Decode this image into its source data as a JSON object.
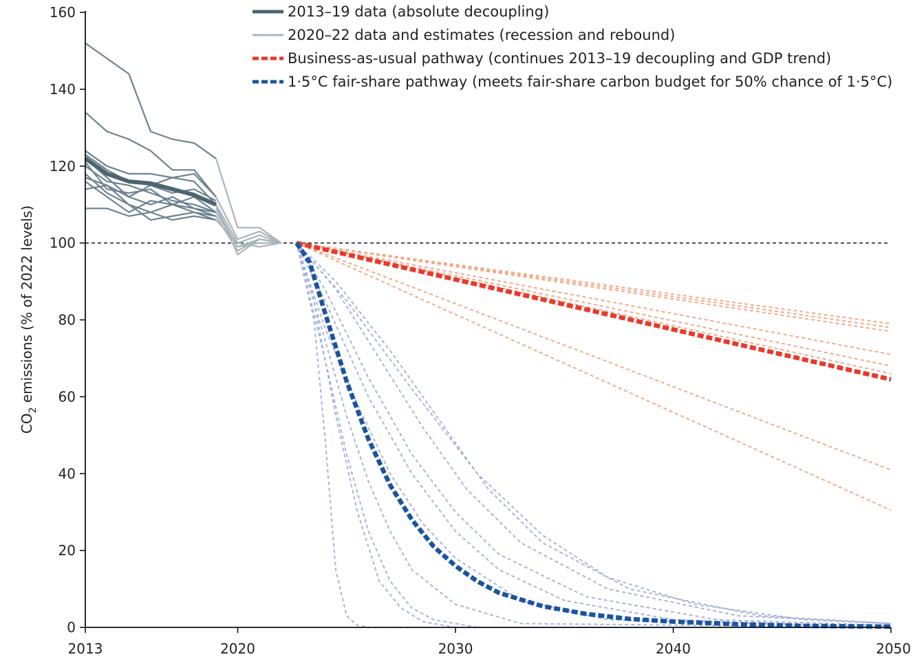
{
  "chart_data": {
    "type": "line",
    "ylabel": "CO2 emissions (% of 2022 levels)",
    "ylabel_main": "CO",
    "ylabel_sub": "2",
    "ylabel_rest": " emissions (% of 2022 levels)",
    "xlim": [
      2013,
      2050
    ],
    "ylim": [
      0,
      160
    ],
    "x_ticks": [
      {
        "value": 2013,
        "label": "2013"
      },
      {
        "value": 2020,
        "label": "2020"
      },
      {
        "value": 2030,
        "label": "2030"
      },
      {
        "value": 2040,
        "label": "2040"
      },
      {
        "value": 2050,
        "label": "2050"
      }
    ],
    "y_ticks": [
      {
        "value": 0,
        "label": "0"
      },
      {
        "value": 20,
        "label": "20"
      },
      {
        "value": 40,
        "label": "40"
      },
      {
        "value": 60,
        "label": "60"
      },
      {
        "value": 80,
        "label": "80"
      },
      {
        "value": 100,
        "label": "100"
      },
      {
        "value": 120,
        "label": "120"
      },
      {
        "value": 140,
        "label": "140"
      },
      {
        "value": 160,
        "label": "160"
      }
    ],
    "reference_line": {
      "y": 100,
      "style": "dashed",
      "color": "#111111"
    },
    "legend": {
      "placement": "top",
      "items": [
        {
          "label": "2013–19 data (absolute decoupling)",
          "style": "solid",
          "color": "#4d6570"
        },
        {
          "label": "2020–22 data and estimates (recession and rebound)",
          "style": "solid",
          "color": "#a9b4bb"
        },
        {
          "label": "Business-as-usual pathway (continues 2013–19 decoupling and GDP trend)",
          "style": "dashed",
          "color": "#e8392b"
        },
        {
          "label": "1·5°C fair-share pathway (meets fair-share carbon budget for 50% chance of 1·5°C)",
          "style": "dashed",
          "color": "#1a54a0"
        }
      ]
    },
    "colors": {
      "historical_country": "#6d838e",
      "historical_mean": "#4d6570",
      "recession_country": "#a9b4bb",
      "bau_country": "#f4a888",
      "bau_mean": "#e8392b",
      "fairshare_country": "#a6b3dc",
      "fairshare_mean": "#1a54a0"
    },
    "series": [
      {
        "group": "historical",
        "x": [
          2013,
          2014,
          2015,
          2016,
          2017,
          2018,
          2019
        ],
        "y": [
          152,
          148,
          144,
          129,
          127,
          126,
          122
        ]
      },
      {
        "group": "historical",
        "x": [
          2013,
          2014,
          2015,
          2016,
          2017,
          2018,
          2019
        ],
        "y": [
          134,
          129,
          127,
          124,
          119,
          119,
          112
        ]
      },
      {
        "group": "historical",
        "x": [
          2013,
          2014,
          2015,
          2016,
          2017,
          2018,
          2019
        ],
        "y": [
          124,
          120,
          118,
          118,
          117,
          116,
          110
        ]
      },
      {
        "group": "historical",
        "x": [
          2013,
          2014,
          2015,
          2016,
          2017,
          2018,
          2019
        ],
        "y": [
          123,
          119,
          116,
          115,
          117,
          118,
          112
        ]
      },
      {
        "group": "historical",
        "x": [
          2013,
          2014,
          2015,
          2016,
          2017,
          2018,
          2019
        ],
        "y": [
          122,
          117,
          112,
          115,
          113,
          114,
          111
        ]
      },
      {
        "group": "historical",
        "x": [
          2013,
          2014,
          2015,
          2016,
          2017,
          2018,
          2019
        ],
        "y": [
          121,
          114,
          113,
          114,
          110,
          112,
          108
        ]
      },
      {
        "group": "historical",
        "x": [
          2013,
          2014,
          2015,
          2016,
          2017,
          2018,
          2019
        ],
        "y": [
          120,
          116,
          115,
          113,
          111,
          110,
          108
        ]
      },
      {
        "group": "historical",
        "x": [
          2013,
          2014,
          2015,
          2016,
          2017,
          2018,
          2019
        ],
        "y": [
          118,
          113,
          110,
          108,
          110,
          109,
          107
        ]
      },
      {
        "group": "historical",
        "x": [
          2013,
          2014,
          2015,
          2016,
          2017,
          2018,
          2019
        ],
        "y": [
          116,
          112,
          108,
          111,
          110,
          108,
          106
        ]
      },
      {
        "group": "historical",
        "x": [
          2013,
          2014,
          2015,
          2016,
          2017,
          2018,
          2019
        ],
        "y": [
          114,
          115,
          110,
          106,
          107,
          108,
          107
        ]
      },
      {
        "group": "historical",
        "x": [
          2013,
          2014,
          2015,
          2016,
          2017,
          2018,
          2019
        ],
        "y": [
          109,
          109,
          107,
          108,
          106,
          107,
          106
        ]
      },
      {
        "group": "historical",
        "x": [
          2013,
          2014,
          2015,
          2016,
          2017,
          2018,
          2019
        ],
        "y": [
          117,
          115,
          112,
          110,
          112,
          109,
          108
        ]
      },
      {
        "group": "historical-mean",
        "x": [
          2013,
          2014,
          2015,
          2016,
          2017,
          2018,
          2019
        ],
        "y": [
          122,
          118,
          116,
          115.5,
          114,
          112.5,
          110
        ]
      },
      {
        "group": "recession",
        "x": [
          2019,
          2020,
          2021,
          2022
        ],
        "y": [
          122,
          104,
          104,
          100
        ]
      },
      {
        "group": "recession",
        "x": [
          2019,
          2020,
          2021,
          2022
        ],
        "y": [
          112,
          101,
          103,
          100
        ]
      },
      {
        "group": "recession",
        "x": [
          2019,
          2020,
          2021,
          2022
        ],
        "y": [
          110,
          97,
          101,
          100
        ]
      },
      {
        "group": "recession",
        "x": [
          2019,
          2020,
          2021,
          2022
        ],
        "y": [
          108,
          99,
          100,
          100
        ]
      },
      {
        "group": "recession",
        "x": [
          2019,
          2020,
          2021,
          2022
        ],
        "y": [
          107,
          98,
          101,
          100
        ]
      },
      {
        "group": "recession",
        "x": [
          2019,
          2020,
          2021,
          2022
        ],
        "y": [
          110,
          100,
          99,
          100
        ]
      },
      {
        "group": "recession",
        "x": [
          2019,
          2020,
          2021,
          2022
        ],
        "y": [
          106,
          100,
          102,
          100
        ]
      },
      {
        "group": "recession",
        "x": [
          2019,
          2020,
          2021,
          2022
        ],
        "y": [
          109,
          99,
          101,
          100
        ]
      },
      {
        "group": "bau",
        "x": [
          2022.7,
          2050
        ],
        "y": [
          100,
          79
        ]
      },
      {
        "group": "bau",
        "x": [
          2022.7,
          2050
        ],
        "y": [
          100,
          78
        ]
      },
      {
        "group": "bau",
        "x": [
          2022.7,
          2050
        ],
        "y": [
          100,
          77
        ]
      },
      {
        "group": "bau",
        "x": [
          2022.7,
          2050
        ],
        "y": [
          100,
          71
        ]
      },
      {
        "group": "bau",
        "x": [
          2022.7,
          2050
        ],
        "y": [
          100,
          68
        ]
      },
      {
        "group": "bau",
        "x": [
          2022.7,
          2050
        ],
        "y": [
          100,
          66
        ]
      },
      {
        "group": "bau",
        "x": [
          2022.7,
          2050
        ],
        "y": [
          100,
          41
        ]
      },
      {
        "group": "bau",
        "x": [
          2022.7,
          2050
        ],
        "y": [
          100,
          30.5
        ]
      },
      {
        "group": "bau-mean",
        "x": [
          2022.7,
          2050
        ],
        "y": [
          100,
          64.5
        ]
      },
      {
        "group": "fairshare",
        "x": [
          2022.7,
          2023.5,
          2024,
          2024.5,
          2025,
          2025.5,
          2026,
          2027,
          2050
        ],
        "y": [
          100,
          80,
          50,
          15,
          3,
          0.5,
          0,
          0,
          0
        ]
      },
      {
        "group": "fairshare",
        "x": [
          2022.7,
          2023.5,
          2024.5,
          2025.5,
          2026.5,
          2027.5,
          2028.5,
          2030,
          2050
        ],
        "y": [
          100,
          85,
          55,
          30,
          12,
          5,
          1.5,
          0,
          0
        ]
      },
      {
        "group": "fairshare",
        "x": [
          2022.7,
          2024,
          2025,
          2026,
          2027,
          2028,
          2030,
          2033,
          2050
        ],
        "y": [
          100,
          75,
          55,
          38,
          25,
          15,
          6,
          1,
          0
        ]
      },
      {
        "group": "fairshare",
        "x": [
          2022.7,
          2024,
          2025.5,
          2027,
          2028.5,
          2030,
          2033,
          2037,
          2050
        ],
        "y": [
          100,
          78,
          58,
          40,
          27,
          18,
          7,
          2,
          0
        ]
      },
      {
        "group": "fairshare",
        "x": [
          2022.7,
          2024,
          2026,
          2028,
          2030,
          2032,
          2035,
          2040,
          2050
        ],
        "y": [
          100,
          85,
          60,
          40,
          25,
          15,
          7,
          2,
          0
        ]
      },
      {
        "group": "fairshare",
        "x": [
          2022.7,
          2024,
          2026,
          2028,
          2030,
          2032,
          2036,
          2042,
          2050
        ],
        "y": [
          100,
          88,
          65,
          45,
          30,
          19,
          8,
          2,
          0.5
        ]
      },
      {
        "group": "fairshare",
        "x": [
          2022.7,
          2024.5,
          2026.5,
          2028.5,
          2030.5,
          2033,
          2037,
          2043,
          2050
        ],
        "y": [
          100,
          88,
          70,
          52,
          36,
          22,
          10,
          3,
          1
        ]
      },
      {
        "group": "fairshare",
        "x": [
          2022.7,
          2024.5,
          2027,
          2029.5,
          2031.5,
          2034,
          2038,
          2044,
          2050
        ],
        "y": [
          100,
          90,
          72,
          52,
          36,
          22,
          10,
          3,
          1
        ]
      },
      {
        "group": "fairshare",
        "x": [
          2022.7,
          2025,
          2028,
          2031,
          2034,
          2037,
          2041,
          2046,
          2050
        ],
        "y": [
          100,
          85,
          62,
          40,
          24,
          13,
          6,
          2,
          1
        ]
      },
      {
        "group": "fairshare",
        "x": [
          2022.7,
          2024,
          2025,
          2026,
          2027,
          2028,
          2029,
          2031,
          2050
        ],
        "y": [
          100,
          70,
          45,
          25,
          12,
          5,
          2,
          0,
          0
        ]
      },
      {
        "group": "fairshare-mean",
        "x": [
          2022.7,
          2023.3,
          2024,
          2025,
          2026,
          2027,
          2028,
          2029,
          2030,
          2031,
          2032,
          2034,
          2036,
          2038,
          2040,
          2043,
          2046,
          2050
        ],
        "y": [
          100,
          95,
          82,
          64,
          49,
          37,
          28,
          21,
          16,
          12,
          9,
          5.5,
          3.5,
          2.2,
          1.5,
          0.8,
          0.4,
          0.2
        ]
      }
    ]
  }
}
